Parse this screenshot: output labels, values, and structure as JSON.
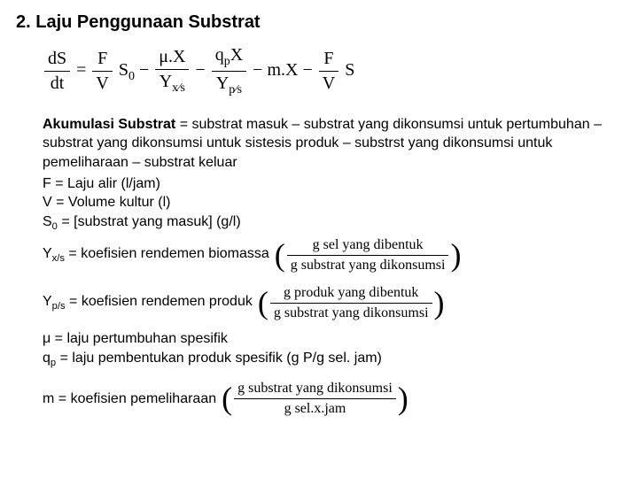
{
  "heading": "2.  Laju Penggunaan Substrat",
  "equation": {
    "lhs_num": "dS",
    "lhs_den": "dt",
    "eq": " = ",
    "t1_num": "F",
    "t1_den": "V",
    "t1_tail": "S",
    "t1_sub": "0",
    "minus": " − ",
    "t2_num": "μ.X",
    "t2_den_y": "Y",
    "t2_den_sub": "x⁄s",
    "t3_num_q": "q",
    "t3_num_sub": "p",
    "t3_num_tail": "X",
    "t3_den_y": "Y",
    "t3_den_sub": "p⁄s",
    "t4": " m.X ",
    "t5_num": "F",
    "t5_den": "V",
    "t5_tail": "S"
  },
  "defs": {
    "akumulasi_label": "Akumulasi Substrat",
    "akumulasi_text": " = substrat  masuk – substrat yang dikonsumsi untuk pertumbuhan – substrat yang dikonsumsi untuk sistesis produk – substrst yang dikonsumsi untuk pemeliharaan – substrat keluar",
    "f": "F = Laju alir (l/jam)",
    "v": "V = Volume kultur (l)",
    "s0_a": "S",
    "s0_sub": "0",
    "s0_b": " = [substrat yang masuk] (g/l)",
    "yxs_a": "Y",
    "yxs_sub": "x/s",
    "yxs_b": " = koefisien rendemen biomassa",
    "yxs_frac_num": "g sel yang dibentuk",
    "yxs_frac_den": "g substrat yang dikonsumsi",
    "yps_a": "Y",
    "yps_sub": "p/s",
    "yps_b": " = koefisien rendemen produk",
    "yps_frac_num": "g produk yang dibentuk",
    "yps_frac_den": "g substrat yang dikonsumsi",
    "mu": "μ = laju pertumbuhan spesifik",
    "qp_a": "q",
    "qp_sub": "p",
    "qp_b": " = laju pembentukan produk spesifik (g P/g sel. jam)",
    "m": "m = koefisien pemeliharaan",
    "m_frac_num": "g substrat yang dikonsumsi",
    "m_frac_den": "g sel.x.jam"
  },
  "colors": {
    "background": "#ffffff",
    "text": "#000000"
  },
  "typography": {
    "body_font": "Arial",
    "body_size_pt": 12,
    "heading_size_pt": 15,
    "math_font": "Times New Roman"
  }
}
